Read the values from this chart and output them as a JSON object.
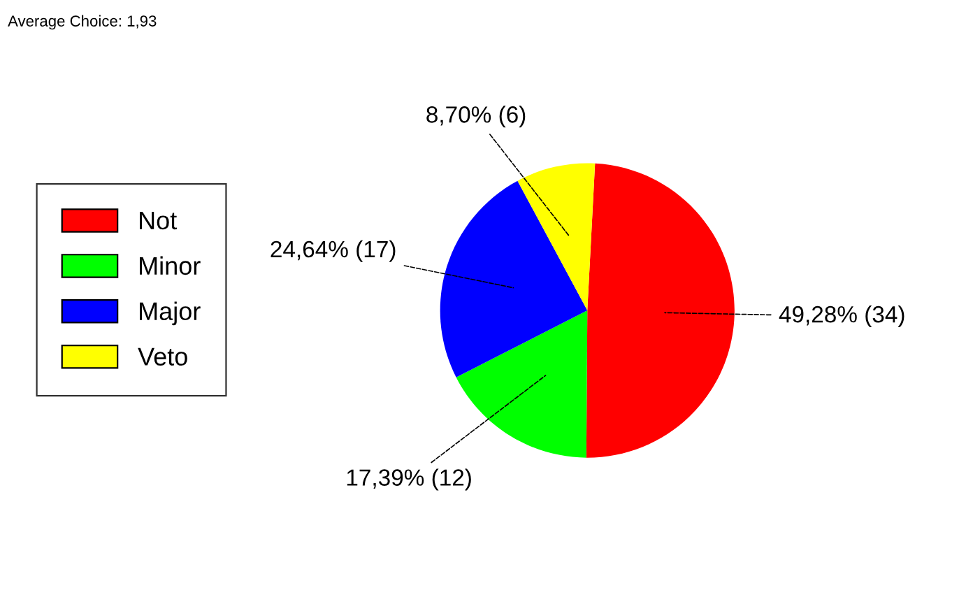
{
  "chart_data": {
    "type": "pie",
    "categories": [
      "Not",
      "Minor",
      "Major",
      "Veto"
    ],
    "values": [
      34,
      12,
      17,
      6
    ],
    "colors": [
      "#ff0000",
      "#00ff00",
      "#0000ff",
      "#ffff00"
    ],
    "value_labels": [
      "49,28% (34)",
      "17,39% (12)",
      "24,64% (17)",
      "8,70% (6)"
    ],
    "annotations": [
      "Average Choice: 1,93"
    ],
    "legend": "left"
  }
}
